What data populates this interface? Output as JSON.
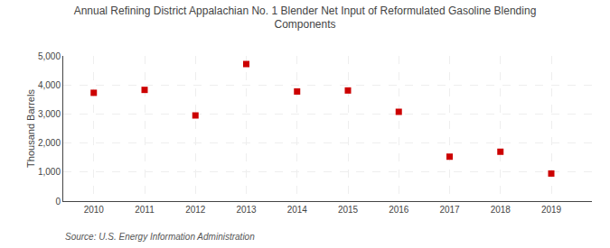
{
  "chart_data": {
    "type": "scatter",
    "title": "Annual Refining District Appalachian No. 1 Blender Net Input of Reformulated Gasoline Blending\nComponents",
    "ylabel": "Thousand Barrels",
    "annotations": [
      "Source: U.S. Energy Information Administration"
    ],
    "x": [
      2010,
      2011,
      2012,
      2013,
      2014,
      2015,
      2016,
      2017,
      2018,
      2019
    ],
    "values": [
      3730,
      3830,
      2950,
      4720,
      3775,
      3810,
      3075,
      1530,
      1700,
      950
    ],
    "color": "#cc0000",
    "marker": "square",
    "xlim": [
      2009.4,
      2019.8
    ],
    "xticks": [
      2010,
      2011,
      2012,
      2013,
      2014,
      2015,
      2016,
      2017,
      2018,
      2019
    ],
    "ylim": [
      0,
      5000
    ],
    "yticks": [
      0,
      {
        "value": 1000,
        "label": "1,000"
      },
      {
        "value": 2000,
        "label": "2,000"
      },
      {
        "value": 3000,
        "label": "3,000"
      },
      {
        "value": 4000,
        "label": "4,000"
      },
      {
        "value": 5000,
        "label": "5,000"
      }
    ],
    "grid": true
  }
}
